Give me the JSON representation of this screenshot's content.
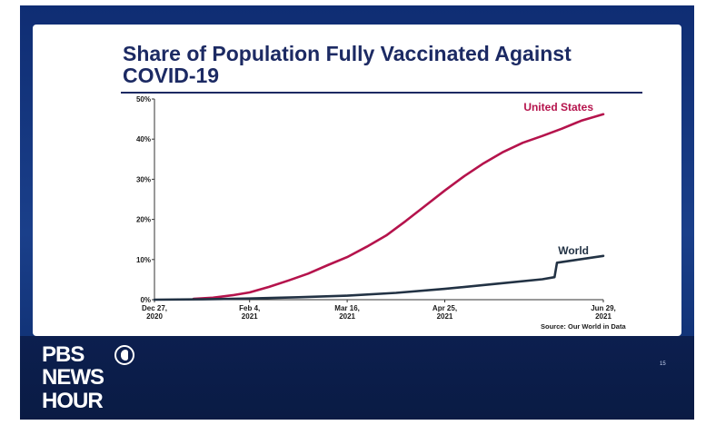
{
  "slide": {
    "title": "Share of Population Fully Vaccinated Against COVID-19",
    "source": "Source: Our World in Data",
    "page_number": "15"
  },
  "logo": {
    "lines": [
      "PBS",
      "NEWS",
      "HOUR"
    ]
  },
  "colors": {
    "united_states": "#b5134c",
    "world": "#223244",
    "title": "#1c2a63",
    "background": "#14306e"
  },
  "chart_data": {
    "type": "line",
    "title": "Share of Population Fully Vaccinated Against COVID-19",
    "xlabel": "",
    "ylabel": "",
    "x_range": [
      "2020-12-27",
      "2021-06-29"
    ],
    "ylim": [
      0,
      50
    ],
    "y_ticks": [
      {
        "value": 0,
        "label": "0%"
      },
      {
        "value": 10,
        "label": "10%"
      },
      {
        "value": 20,
        "label": "20%"
      },
      {
        "value": 30,
        "label": "30%"
      },
      {
        "value": 40,
        "label": "40%"
      },
      {
        "value": 50,
        "label": "50%"
      }
    ],
    "x_ticks": [
      {
        "date": "2020-12-27",
        "label": [
          "Dec 27,",
          "2020"
        ]
      },
      {
        "date": "2021-02-04",
        "label": [
          "Feb 4,",
          "2021"
        ]
      },
      {
        "date": "2021-03-16",
        "label": [
          "Mar 16,",
          "2021"
        ]
      },
      {
        "date": "2021-04-25",
        "label": [
          "Apr 25,",
          "2021"
        ]
      },
      {
        "date": "2021-06-29",
        "label": [
          "Jun 29,",
          "2021"
        ]
      }
    ],
    "grid": false,
    "series": [
      {
        "name": "United States",
        "color": "#b5134c",
        "points": [
          [
            "2021-01-12",
            0.2
          ],
          [
            "2021-01-20",
            0.5
          ],
          [
            "2021-01-28",
            1.1
          ],
          [
            "2021-02-04",
            1.8
          ],
          [
            "2021-02-12",
            3.2
          ],
          [
            "2021-02-20",
            4.8
          ],
          [
            "2021-02-28",
            6.5
          ],
          [
            "2021-03-08",
            8.6
          ],
          [
            "2021-03-16",
            10.6
          ],
          [
            "2021-03-24",
            13.2
          ],
          [
            "2021-04-01",
            16.0
          ],
          [
            "2021-04-09",
            19.6
          ],
          [
            "2021-04-17",
            23.4
          ],
          [
            "2021-04-25",
            27.2
          ],
          [
            "2021-05-03",
            30.8
          ],
          [
            "2021-05-11",
            34.0
          ],
          [
            "2021-05-19",
            36.8
          ],
          [
            "2021-05-27",
            39.1
          ],
          [
            "2021-06-04",
            40.8
          ],
          [
            "2021-06-12",
            42.6
          ],
          [
            "2021-06-20",
            44.6
          ],
          [
            "2021-06-29",
            46.2
          ]
        ]
      },
      {
        "name": "World",
        "color": "#223244",
        "points": [
          [
            "2020-12-27",
            0.0
          ],
          [
            "2021-01-16",
            0.1
          ],
          [
            "2021-02-04",
            0.3
          ],
          [
            "2021-02-24",
            0.6
          ],
          [
            "2021-03-16",
            1.0
          ],
          [
            "2021-04-05",
            1.7
          ],
          [
            "2021-04-25",
            2.7
          ],
          [
            "2021-05-15",
            3.9
          ],
          [
            "2021-06-04",
            5.1
          ],
          [
            "2021-06-09",
            5.6
          ],
          [
            "2021-06-10",
            9.2
          ],
          [
            "2021-06-29",
            10.9
          ]
        ]
      }
    ]
  }
}
